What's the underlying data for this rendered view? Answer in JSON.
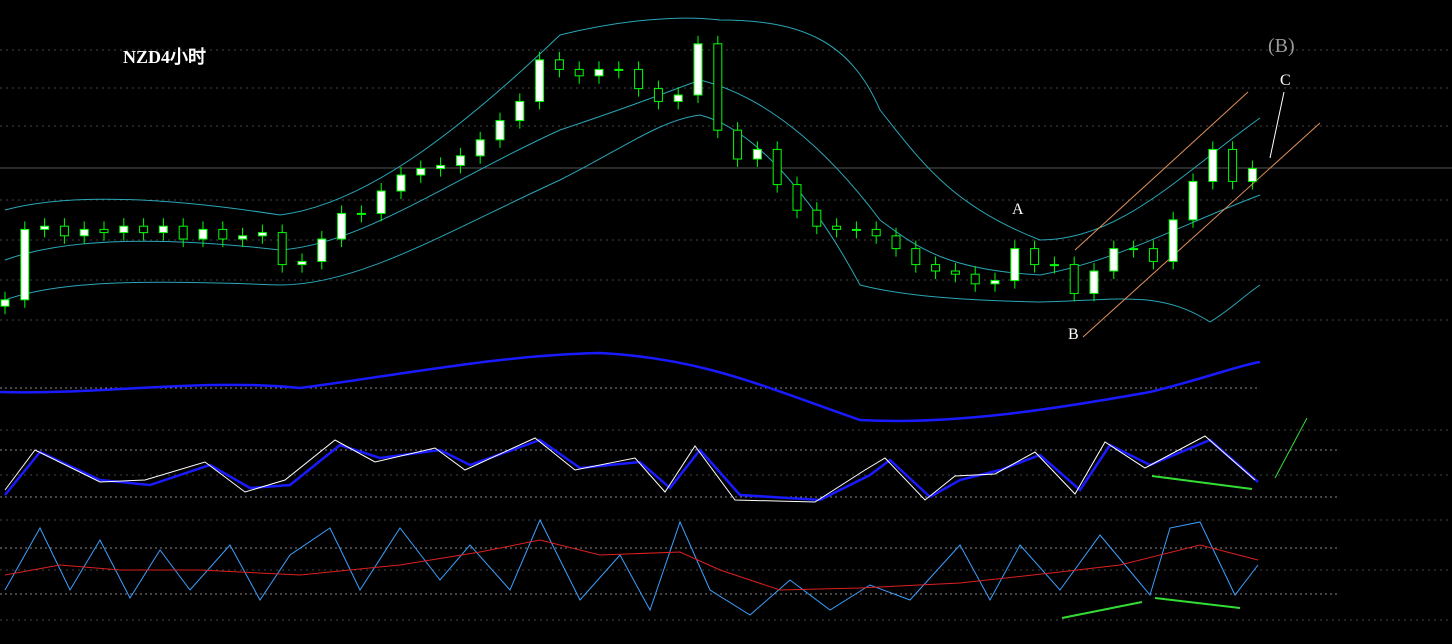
{
  "chart_data": {
    "type": "candlestick",
    "title": "NZD4小时",
    "annotations": [
      "A",
      "B",
      "C",
      "(B)"
    ],
    "ylim": [
      0,
      100
    ],
    "open": [
      9,
      11,
      33,
      34,
      31,
      33,
      32,
      34,
      32,
      34,
      30,
      33,
      30,
      31,
      32,
      22,
      23,
      30,
      38,
      38,
      45,
      50,
      52,
      53,
      56,
      61,
      67,
      73,
      86,
      83,
      81,
      83,
      83,
      77,
      73,
      75,
      91,
      64,
      55,
      58,
      47,
      39,
      34,
      33,
      33,
      31,
      27,
      22,
      20,
      19,
      16,
      17,
      27,
      22,
      22,
      13,
      20,
      27,
      27,
      23,
      36,
      48,
      58,
      48
    ],
    "close": [
      11,
      33,
      34,
      31,
      33,
      32,
      34,
      32,
      34,
      30,
      33,
      30,
      31,
      32,
      22,
      23,
      30,
      38,
      38,
      45,
      50,
      52,
      53,
      56,
      61,
      67,
      73,
      86,
      83,
      81,
      83,
      83,
      77,
      73,
      75,
      91,
      64,
      55,
      58,
      47,
      39,
      34,
      33,
      33,
      31,
      27,
      22,
      20,
      19,
      16,
      17,
      27,
      22,
      22,
      13,
      20,
      27,
      27,
      23,
      36,
      48,
      58,
      48,
      52
    ],
    "up_color": "#ffffff",
    "down_color": "#000000",
    "wick_color": "#00ff00"
  }
}
